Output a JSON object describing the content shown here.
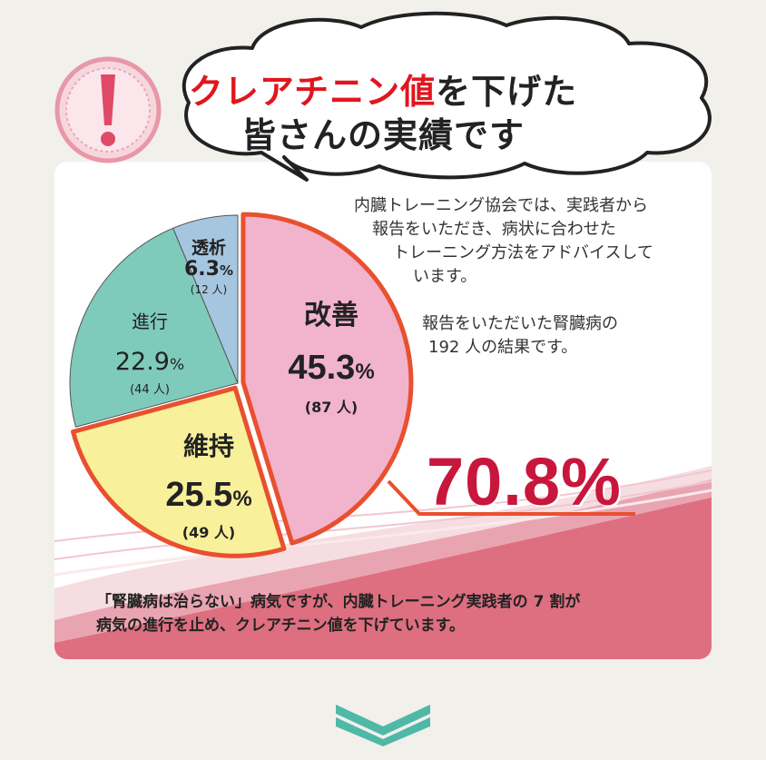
{
  "header": {
    "line1_highlight": "クレアチニン値",
    "line1_rest": "を下げた",
    "line2": "皆さんの実績です"
  },
  "alert_icon": "exclamation-icon",
  "description": {
    "p1": [
      "内臓トレーニング協会では、実践者から",
      "報告をいただき、病状に合わせた",
      "トレーニング方法をアドバイスして",
      "います。"
    ],
    "p2": [
      "報告をいただいた腎臓病の",
      "192 人の結果です。"
    ]
  },
  "chart_data": {
    "type": "pie",
    "slices": [
      {
        "name": "改善",
        "percent": "45.3",
        "count": "(87 人)",
        "color": "#f2b3cc"
      },
      {
        "name": "維持",
        "percent": "25.5",
        "count": "(49 人)",
        "color": "#f8f09a"
      },
      {
        "name": "進行",
        "percent": "22.9",
        "count": "(44 人)",
        "color": "#7fcbbb"
      },
      {
        "name": "透析",
        "percent": "6.3",
        "count": "(12 人)",
        "color": "#a6c6e0"
      }
    ],
    "pct_unit": "%",
    "highlight_total": "70.8%"
  },
  "bottom_text": [
    "「腎臓病は治らない」病気ですが、内臓トレーニング実践者の 7 割が",
    "病気の進行を止め、クレアチニン値を下げています。"
  ],
  "colors": {
    "accent_red": "#e0161f",
    "pct_red": "#c8163c",
    "band_red": "#dd6f80"
  },
  "scroll_icon": "double-chevron-down-icon"
}
